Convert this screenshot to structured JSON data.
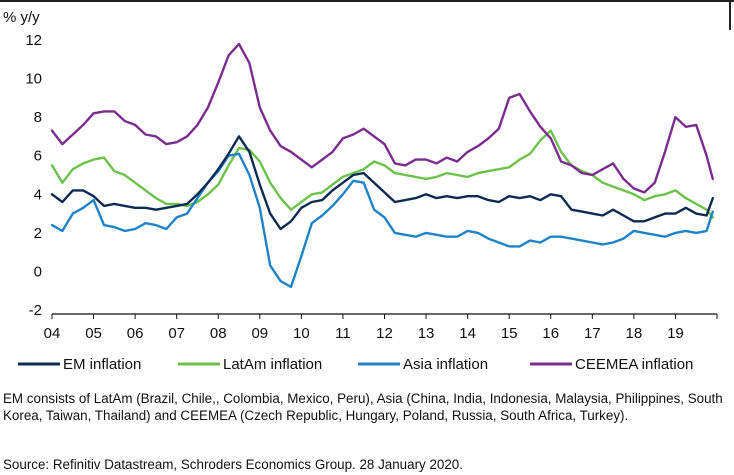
{
  "chart_data": {
    "type": "line",
    "title": "",
    "ylabel": "% y/y",
    "xlabel": "",
    "ylim": [
      -3,
      12.5
    ],
    "xlim": [
      2004,
      2020
    ],
    "yticks": [
      12,
      10,
      8,
      6,
      4,
      2,
      0,
      -2
    ],
    "xtick_labels": [
      "04",
      "05",
      "06",
      "07",
      "08",
      "09",
      "10",
      "11",
      "12",
      "13",
      "14",
      "15",
      "16",
      "17",
      "18",
      "19"
    ],
    "xtick_values": [
      2004,
      2005,
      2006,
      2007,
      2008,
      2009,
      2010,
      2011,
      2012,
      2013,
      2014,
      2015,
      2016,
      2017,
      2018,
      2019
    ],
    "legend_position": "bottom",
    "series": [
      {
        "name": "EM inflation",
        "color": "#0d2b52",
        "x": [
          2004.0,
          2004.25,
          2004.5,
          2004.75,
          2005.0,
          2005.25,
          2005.5,
          2005.75,
          2006.0,
          2006.25,
          2006.5,
          2006.75,
          2007.0,
          2007.25,
          2007.5,
          2007.75,
          2008.0,
          2008.25,
          2008.5,
          2008.75,
          2009.0,
          2009.25,
          2009.5,
          2009.75,
          2010.0,
          2010.25,
          2010.5,
          2010.75,
          2011.0,
          2011.25,
          2011.5,
          2011.75,
          2012.0,
          2012.25,
          2012.5,
          2012.75,
          2013.0,
          2013.25,
          2013.5,
          2013.75,
          2014.0,
          2014.25,
          2014.5,
          2014.75,
          2015.0,
          2015.25,
          2015.5,
          2015.75,
          2016.0,
          2016.25,
          2016.5,
          2016.75,
          2017.0,
          2017.25,
          2017.5,
          2017.75,
          2018.0,
          2018.25,
          2018.5,
          2018.75,
          2019.0,
          2019.25,
          2019.5,
          2019.75,
          2019.9
        ],
        "values": [
          4.0,
          3.6,
          4.2,
          4.2,
          3.9,
          3.4,
          3.5,
          3.4,
          3.3,
          3.3,
          3.2,
          3.3,
          3.4,
          3.5,
          4.0,
          4.6,
          5.3,
          6.1,
          7.0,
          6.2,
          4.5,
          3.0,
          2.2,
          2.6,
          3.3,
          3.6,
          3.7,
          4.2,
          4.6,
          5.0,
          5.1,
          4.6,
          4.1,
          3.6,
          3.7,
          3.8,
          4.0,
          3.8,
          3.9,
          3.8,
          3.9,
          3.9,
          3.7,
          3.6,
          3.9,
          3.8,
          3.9,
          3.7,
          4.0,
          3.9,
          3.2,
          3.1,
          3.0,
          2.9,
          3.2,
          2.9,
          2.6,
          2.6,
          2.8,
          3.0,
          3.0,
          3.3,
          3.0,
          2.9,
          3.8
        ]
      },
      {
        "name": "LatAm inflation",
        "color": "#6cc24a",
        "x": [
          2004.0,
          2004.25,
          2004.5,
          2004.75,
          2005.0,
          2005.25,
          2005.5,
          2005.75,
          2006.0,
          2006.25,
          2006.5,
          2006.75,
          2007.0,
          2007.25,
          2007.5,
          2007.75,
          2008.0,
          2008.25,
          2008.5,
          2008.75,
          2009.0,
          2009.25,
          2009.5,
          2009.75,
          2010.0,
          2010.25,
          2010.5,
          2010.75,
          2011.0,
          2011.25,
          2011.5,
          2011.75,
          2012.0,
          2012.25,
          2012.5,
          2012.75,
          2013.0,
          2013.25,
          2013.5,
          2013.75,
          2014.0,
          2014.25,
          2014.5,
          2014.75,
          2015.0,
          2015.25,
          2015.5,
          2015.75,
          2016.0,
          2016.25,
          2016.5,
          2016.75,
          2017.0,
          2017.25,
          2017.5,
          2017.75,
          2018.0,
          2018.25,
          2018.5,
          2018.75,
          2019.0,
          2019.25,
          2019.5,
          2019.75,
          2019.9
        ],
        "values": [
          5.5,
          4.6,
          5.3,
          5.6,
          5.8,
          5.9,
          5.2,
          5.0,
          4.6,
          4.2,
          3.8,
          3.5,
          3.5,
          3.4,
          3.6,
          4.0,
          4.5,
          5.5,
          6.4,
          6.3,
          5.7,
          4.6,
          3.8,
          3.2,
          3.6,
          4.0,
          4.1,
          4.5,
          4.9,
          5.1,
          5.3,
          5.7,
          5.5,
          5.1,
          5.0,
          4.9,
          4.8,
          4.9,
          5.1,
          5.0,
          4.9,
          5.1,
          5.2,
          5.3,
          5.4,
          5.8,
          6.1,
          6.8,
          7.3,
          6.2,
          5.5,
          5.2,
          5.0,
          4.6,
          4.4,
          4.2,
          4.0,
          3.7,
          3.9,
          4.0,
          4.2,
          3.8,
          3.5,
          3.2,
          2.8
        ]
      },
      {
        "name": "Asia inflation",
        "color": "#1f83c6",
        "x": [
          2004.0,
          2004.25,
          2004.5,
          2004.75,
          2005.0,
          2005.25,
          2005.5,
          2005.75,
          2006.0,
          2006.25,
          2006.5,
          2006.75,
          2007.0,
          2007.25,
          2007.5,
          2007.75,
          2008.0,
          2008.25,
          2008.5,
          2008.75,
          2009.0,
          2009.25,
          2009.5,
          2009.75,
          2010.0,
          2010.25,
          2010.5,
          2010.75,
          2011.0,
          2011.25,
          2011.5,
          2011.75,
          2012.0,
          2012.25,
          2012.5,
          2012.75,
          2013.0,
          2013.25,
          2013.5,
          2013.75,
          2014.0,
          2014.25,
          2014.5,
          2014.75,
          2015.0,
          2015.25,
          2015.5,
          2015.75,
          2016.0,
          2016.25,
          2016.5,
          2016.75,
          2017.0,
          2017.25,
          2017.5,
          2017.75,
          2018.0,
          2018.25,
          2018.5,
          2018.75,
          2019.0,
          2019.25,
          2019.5,
          2019.75,
          2019.9
        ],
        "values": [
          2.4,
          2.1,
          3.0,
          3.3,
          3.7,
          2.4,
          2.3,
          2.1,
          2.2,
          2.5,
          2.4,
          2.2,
          2.8,
          3.0,
          3.8,
          4.6,
          5.2,
          6.0,
          6.1,
          5.0,
          3.3,
          0.3,
          -0.5,
          -0.8,
          0.8,
          2.5,
          2.9,
          3.4,
          4.0,
          4.7,
          4.6,
          3.2,
          2.8,
          2.0,
          1.9,
          1.8,
          2.0,
          1.9,
          1.8,
          1.8,
          2.1,
          2.0,
          1.7,
          1.5,
          1.3,
          1.3,
          1.6,
          1.5,
          1.8,
          1.8,
          1.7,
          1.6,
          1.5,
          1.4,
          1.5,
          1.7,
          2.1,
          2.0,
          1.9,
          1.8,
          2.0,
          2.1,
          2.0,
          2.1,
          3.1
        ]
      },
      {
        "name": "CEEMEA inflation",
        "color": "#7b2d8e",
        "x": [
          2004.0,
          2004.25,
          2004.5,
          2004.75,
          2005.0,
          2005.25,
          2005.5,
          2005.75,
          2006.0,
          2006.25,
          2006.5,
          2006.75,
          2007.0,
          2007.25,
          2007.5,
          2007.75,
          2008.0,
          2008.25,
          2008.5,
          2008.75,
          2009.0,
          2009.25,
          2009.5,
          2009.75,
          2010.0,
          2010.25,
          2010.5,
          2010.75,
          2011.0,
          2011.25,
          2011.5,
          2011.75,
          2012.0,
          2012.25,
          2012.5,
          2012.75,
          2013.0,
          2013.25,
          2013.5,
          2013.75,
          2014.0,
          2014.25,
          2014.5,
          2014.75,
          2015.0,
          2015.25,
          2015.5,
          2015.75,
          2016.0,
          2016.25,
          2016.5,
          2016.75,
          2017.0,
          2017.25,
          2017.5,
          2017.75,
          2018.0,
          2018.25,
          2018.5,
          2018.75,
          2019.0,
          2019.25,
          2019.5,
          2019.75,
          2019.9
        ],
        "values": [
          7.3,
          6.6,
          7.1,
          7.6,
          8.2,
          8.3,
          8.3,
          7.8,
          7.6,
          7.1,
          7.0,
          6.6,
          6.7,
          7.0,
          7.6,
          8.5,
          9.8,
          11.2,
          11.8,
          10.8,
          8.5,
          7.3,
          6.5,
          6.2,
          5.8,
          5.4,
          5.8,
          6.2,
          6.9,
          7.1,
          7.4,
          7.0,
          6.6,
          5.6,
          5.5,
          5.8,
          5.8,
          5.6,
          5.9,
          5.7,
          6.2,
          6.5,
          6.9,
          7.4,
          9.0,
          9.2,
          8.3,
          7.5,
          6.9,
          5.7,
          5.5,
          5.1,
          5.0,
          5.3,
          5.6,
          4.8,
          4.3,
          4.1,
          4.6,
          6.2,
          8.0,
          7.5,
          7.6,
          6.0,
          4.8
        ]
      }
    ]
  },
  "footnote": "EM consists of LatAm (Brazil, Chile,, Colombia, Mexico, Peru), Asia (China, India, Indonesia, Malaysia, Philippines, South Korea, Taiwan, Thailand) and CEEMEA (Czech Republic, Hungary, Poland, Russia, South Africa, Turkey).",
  "source": "Source: Refinitiv Datastream, Schroders Economics Group. 28 January 2020."
}
